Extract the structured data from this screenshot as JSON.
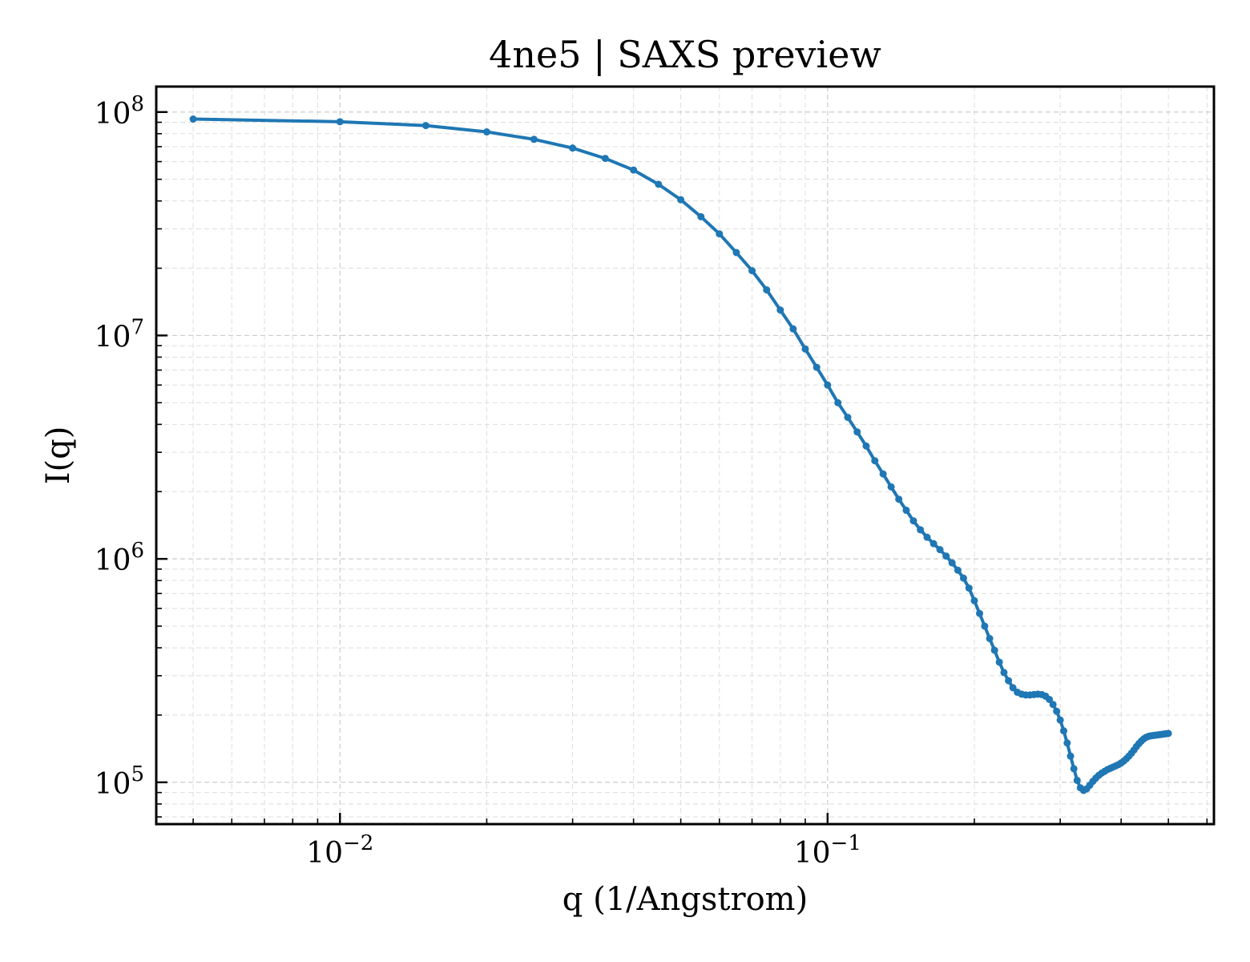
{
  "chart_data": {
    "type": "line",
    "title": "4ne5 | SAXS preview",
    "xlabel": "q (1/Angstrom)",
    "ylabel": "I(q)",
    "xscale": "log",
    "yscale": "log",
    "xlim": [
      0.0042,
      0.62
    ],
    "ylim": [
      65000,
      130000000
    ],
    "grid": true,
    "line_color": "#1f77b4",
    "marker": "circle",
    "x_ticks": [
      {
        "base": "10",
        "exp": "−2",
        "value": 0.01
      },
      {
        "base": "10",
        "exp": "−1",
        "value": 0.1
      }
    ],
    "y_ticks": [
      {
        "base": "10",
        "exp": "5",
        "value": 100000
      },
      {
        "base": "10",
        "exp": "6",
        "value": 1000000
      },
      {
        "base": "10",
        "exp": "7",
        "value": 10000000
      },
      {
        "base": "10",
        "exp": "8",
        "value": 100000000
      }
    ],
    "series": [
      {
        "x": [
          0.005,
          0.01,
          0.015,
          0.02,
          0.025,
          0.03,
          0.035,
          0.04,
          0.045,
          0.05,
          0.055,
          0.06,
          0.065,
          0.07,
          0.075,
          0.08,
          0.085,
          0.09,
          0.095,
          0.1,
          0.105,
          0.11,
          0.115,
          0.12,
          0.125,
          0.13,
          0.135,
          0.14,
          0.145,
          0.15,
          0.155,
          0.16,
          0.165,
          0.17,
          0.175,
          0.18,
          0.185,
          0.19,
          0.195,
          0.2,
          0.205,
          0.21,
          0.215,
          0.22,
          0.225,
          0.23,
          0.235,
          0.24,
          0.245,
          0.25,
          0.255,
          0.26,
          0.265,
          0.27,
          0.275,
          0.28,
          0.285,
          0.29,
          0.295,
          0.3,
          0.305,
          0.31,
          0.315,
          0.32,
          0.325,
          0.33,
          0.335,
          0.34,
          0.345,
          0.35,
          0.355,
          0.36,
          0.365,
          0.37,
          0.375,
          0.38,
          0.385,
          0.39,
          0.395,
          0.4,
          0.405,
          0.41,
          0.415,
          0.42,
          0.425,
          0.43,
          0.435,
          0.44,
          0.445,
          0.45,
          0.455,
          0.46,
          0.465,
          0.47,
          0.475,
          0.48,
          0.485,
          0.49,
          0.495,
          0.5
        ],
        "y": [
          93000000,
          90500000,
          87000000,
          81500000,
          75500000,
          69000000,
          62000000,
          55000000,
          47500000,
          40500000,
          34000000,
          28500000,
          23500000,
          19500000,
          16000000,
          13000000,
          10700000,
          8700000,
          7200000,
          6000000,
          5000000,
          4300000,
          3700000,
          3200000,
          2750000,
          2400000,
          2100000,
          1850000,
          1650000,
          1480000,
          1350000,
          1250000,
          1170000,
          1100000,
          1030000,
          960000,
          890000,
          820000,
          740000,
          650000,
          570000,
          500000,
          440000,
          390000,
          345000,
          310000,
          285000,
          265000,
          253000,
          248000,
          246000,
          246000,
          247000,
          248000,
          247000,
          243000,
          235000,
          223000,
          208000,
          190000,
          170000,
          150000,
          131000,
          115000,
          102000,
          94500,
          92000,
          93500,
          97000,
          101000,
          104500,
          107500,
          110000,
          112000,
          114000,
          115500,
          117000,
          118500,
          120000,
          122000,
          124500,
          127500,
          131000,
          135000,
          139500,
          144500,
          149000,
          153000,
          156500,
          159000,
          160500,
          161500,
          162000,
          162500,
          163000,
          163500,
          164000,
          164500,
          165000,
          165500
        ]
      }
    ]
  }
}
